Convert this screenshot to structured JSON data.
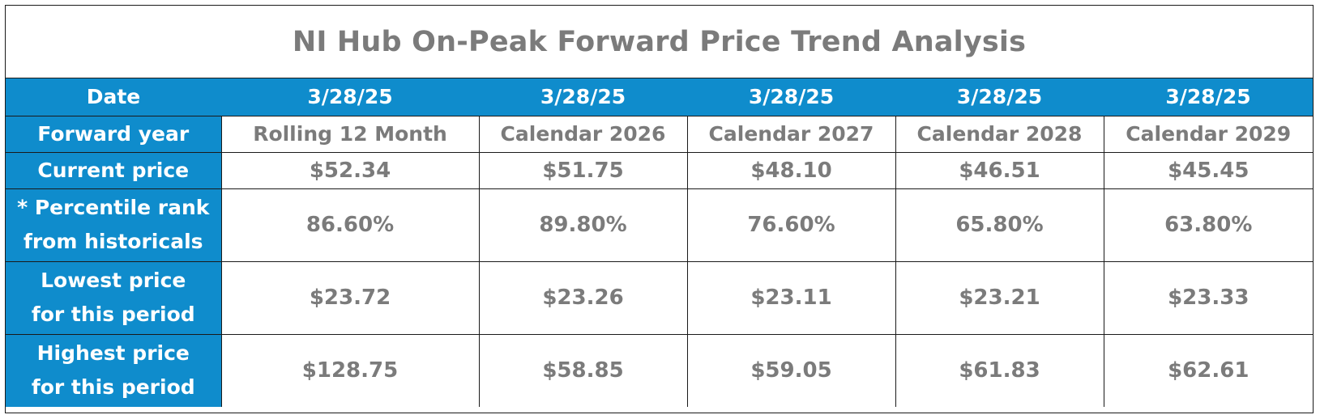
{
  "chart_data": {
    "type": "table",
    "title": "NI Hub On-Peak Forward Price Trend Analysis",
    "row_headers": {
      "date": "Date",
      "forward_year": "Forward year",
      "current_price": "Current price",
      "percentile_line1": "* Percentile rank",
      "percentile_line2": "from historicals",
      "lowest_line1": "Lowest price",
      "lowest_line2": "for this period",
      "highest_line1": "Highest price",
      "highest_line2": "for this period"
    },
    "columns": [
      {
        "date": "3/28/25",
        "forward_year": "Rolling 12 Month",
        "current_price": "$52.34",
        "percentile_rank": "86.60%",
        "lowest_price": "$23.72",
        "highest_price": "$128.75"
      },
      {
        "date": "3/28/25",
        "forward_year": "Calendar 2026",
        "current_price": "$51.75",
        "percentile_rank": "89.80%",
        "lowest_price": "$23.26",
        "highest_price": "$58.85"
      },
      {
        "date": "3/28/25",
        "forward_year": "Calendar 2027",
        "current_price": "$48.10",
        "percentile_rank": "76.60%",
        "lowest_price": "$23.11",
        "highest_price": "$59.05"
      },
      {
        "date": "3/28/25",
        "forward_year": "Calendar 2028",
        "current_price": "$46.51",
        "percentile_rank": "65.80%",
        "lowest_price": "$23.21",
        "highest_price": "$61.83"
      },
      {
        "date": "3/28/25",
        "forward_year": "Calendar 2029",
        "current_price": "$45.45",
        "percentile_rank": "63.80%",
        "lowest_price": "$23.33",
        "highest_price": "$62.61"
      }
    ],
    "colors": {
      "header_fill": "#0f8ccc",
      "header_text": "#ffffff",
      "cell_text": "#7b7b7b",
      "border": "#1a1a1a"
    }
  }
}
